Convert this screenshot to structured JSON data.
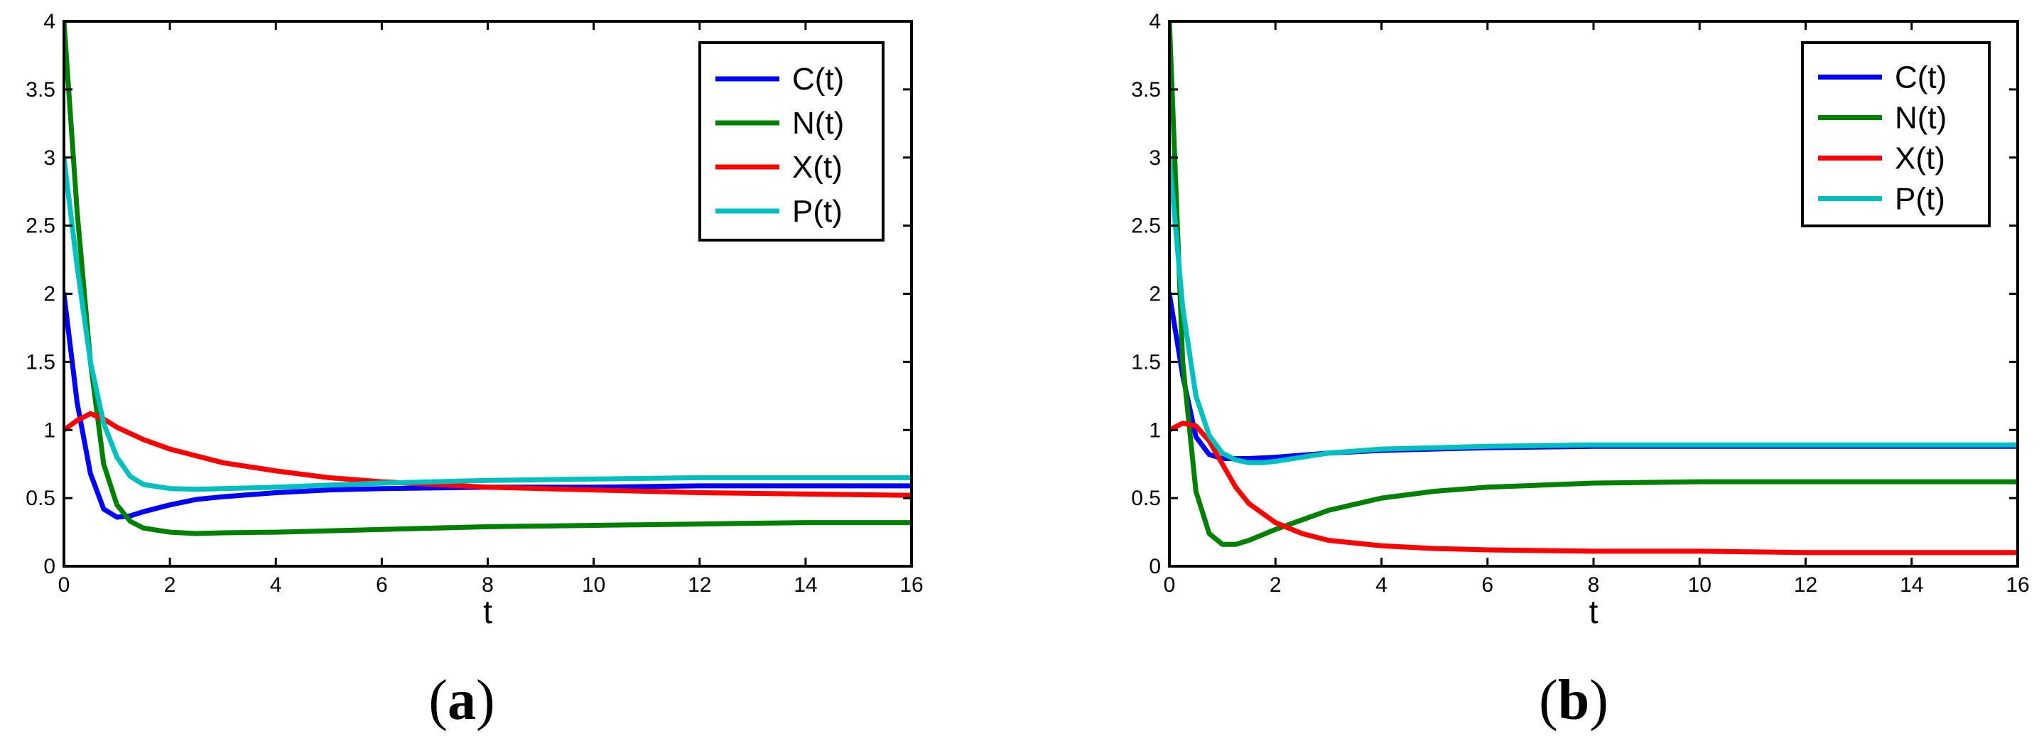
{
  "chart_data": [
    {
      "type": "line",
      "caption": {
        "open": "(",
        "letter": "a",
        "close": ")"
      },
      "xlabel": "t",
      "ylabel": "",
      "xlim": [
        0,
        16
      ],
      "ylim": [
        0,
        4
      ],
      "xticks": [
        0,
        2,
        4,
        6,
        8,
        10,
        12,
        14,
        16
      ],
      "yticks": [
        0,
        0.5,
        1,
        1.5,
        2,
        2.5,
        3,
        3.5,
        4
      ],
      "legend_position": "top-right",
      "series": [
        {
          "name": "C(t)",
          "color": "#0000ff",
          "x": [
            0,
            0.25,
            0.5,
            0.75,
            1.0,
            1.25,
            1.5,
            2,
            2.5,
            3,
            4,
            5,
            6,
            8,
            10,
            12,
            14,
            16
          ],
          "y": [
            2.0,
            1.2,
            0.68,
            0.42,
            0.36,
            0.37,
            0.4,
            0.45,
            0.49,
            0.51,
            0.54,
            0.56,
            0.57,
            0.58,
            0.58,
            0.59,
            0.59,
            0.59
          ]
        },
        {
          "name": "N(t)",
          "color": "#008000",
          "x": [
            0,
            0.25,
            0.5,
            0.75,
            1.0,
            1.25,
            1.5,
            2,
            2.5,
            3,
            4,
            6,
            8,
            10,
            12,
            14,
            16
          ],
          "y": [
            4.0,
            2.6,
            1.5,
            0.75,
            0.45,
            0.33,
            0.28,
            0.25,
            0.24,
            0.245,
            0.25,
            0.27,
            0.29,
            0.3,
            0.31,
            0.32,
            0.32
          ]
        },
        {
          "name": "X(t)",
          "color": "#ff0000",
          "x": [
            0,
            0.25,
            0.5,
            0.75,
            1.0,
            1.5,
            2,
            3,
            4,
            5,
            6,
            8,
            10,
            12,
            14,
            16
          ],
          "y": [
            1.0,
            1.07,
            1.12,
            1.08,
            1.02,
            0.93,
            0.86,
            0.76,
            0.7,
            0.65,
            0.62,
            0.58,
            0.56,
            0.54,
            0.53,
            0.52
          ]
        },
        {
          "name": "P(t)",
          "color": "#00bfbf",
          "x": [
            0,
            0.25,
            0.5,
            0.75,
            1.0,
            1.25,
            1.5,
            2,
            2.5,
            3,
            4,
            6,
            8,
            10,
            12,
            14,
            16
          ],
          "y": [
            3.0,
            2.2,
            1.5,
            1.05,
            0.8,
            0.66,
            0.6,
            0.57,
            0.565,
            0.57,
            0.58,
            0.61,
            0.63,
            0.64,
            0.65,
            0.65,
            0.65
          ]
        }
      ]
    },
    {
      "type": "line",
      "caption": {
        "open": "(",
        "letter": "b",
        "close": ")"
      },
      "xlabel": "t",
      "ylabel": "",
      "xlim": [
        0,
        16
      ],
      "ylim": [
        0,
        4
      ],
      "xticks": [
        0,
        2,
        4,
        6,
        8,
        10,
        12,
        14,
        16
      ],
      "yticks": [
        0,
        0.5,
        1,
        1.5,
        2,
        2.5,
        3,
        3.5,
        4
      ],
      "legend_position": "top-right",
      "series": [
        {
          "name": "C(t)",
          "color": "#0000ff",
          "x": [
            0,
            0.25,
            0.5,
            0.75,
            1.0,
            1.5,
            2,
            3,
            4,
            6,
            8,
            10,
            12,
            14,
            16
          ],
          "y": [
            2.0,
            1.4,
            0.95,
            0.82,
            0.79,
            0.79,
            0.8,
            0.83,
            0.85,
            0.87,
            0.88,
            0.88,
            0.88,
            0.88,
            0.88
          ]
        },
        {
          "name": "N(t)",
          "color": "#008000",
          "x": [
            0,
            0.25,
            0.5,
            0.75,
            1.0,
            1.25,
            1.5,
            2,
            2.5,
            3,
            4,
            5,
            6,
            8,
            10,
            12,
            14,
            16
          ],
          "y": [
            4.0,
            1.5,
            0.55,
            0.24,
            0.16,
            0.16,
            0.19,
            0.27,
            0.34,
            0.41,
            0.5,
            0.55,
            0.58,
            0.61,
            0.62,
            0.62,
            0.62,
            0.62
          ]
        },
        {
          "name": "X(t)",
          "color": "#ff0000",
          "x": [
            0,
            0.25,
            0.5,
            0.75,
            1.0,
            1.25,
            1.5,
            2,
            2.5,
            3,
            4,
            5,
            6,
            8,
            10,
            12,
            14,
            16
          ],
          "y": [
            1.0,
            1.05,
            1.03,
            0.92,
            0.75,
            0.58,
            0.46,
            0.32,
            0.24,
            0.19,
            0.15,
            0.13,
            0.12,
            0.11,
            0.11,
            0.1,
            0.1,
            0.1
          ]
        },
        {
          "name": "P(t)",
          "color": "#00bfbf",
          "x": [
            0,
            0.25,
            0.5,
            0.75,
            1.0,
            1.25,
            1.5,
            1.75,
            2,
            2.5,
            3,
            4,
            6,
            8,
            10,
            12,
            14,
            16
          ],
          "y": [
            3.0,
            1.9,
            1.25,
            0.96,
            0.83,
            0.78,
            0.76,
            0.76,
            0.77,
            0.8,
            0.83,
            0.86,
            0.88,
            0.89,
            0.89,
            0.89,
            0.89,
            0.89
          ]
        }
      ]
    }
  ]
}
